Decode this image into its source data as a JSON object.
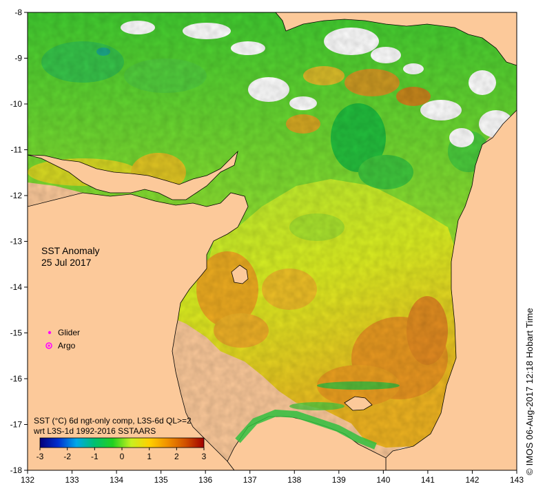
{
  "title": {
    "line1": "SST Anomaly",
    "line2": "25 Jul 2017"
  },
  "legend": {
    "glider": "Glider",
    "argo": "Argo",
    "glider_color": "#ff00ff",
    "argo_color": "#ff00ff"
  },
  "colorbar": {
    "caption_line1": "SST (°C) 6d ngt-only comp, L3S-6d QL>=2",
    "caption_line2": "wrt L3S-1d 1992-2016 SSTAARS",
    "ticks": [
      "-3",
      "-2",
      "-1",
      "0",
      "1",
      "2",
      "3"
    ],
    "min": -3,
    "max": 3,
    "stops": [
      "#05007a",
      "#0030d0",
      "#00a8e8",
      "#00c070",
      "#22d020",
      "#c8f020",
      "#ffd000",
      "#f09000",
      "#d05000",
      "#a00000"
    ]
  },
  "axes": {
    "x_ticks": [
      "132",
      "133",
      "134",
      "135",
      "136",
      "137",
      "138",
      "139",
      "140",
      "141",
      "142",
      "143"
    ],
    "y_ticks": [
      "-8",
      "-9",
      "-10",
      "-11",
      "-12",
      "-13",
      "-14",
      "-15",
      "-16",
      "-17",
      "-18"
    ],
    "lon_range": [
      132,
      143
    ],
    "lat_range": [
      -18,
      -8
    ]
  },
  "credit": "© IMOS 06-Aug-2017 12:18 Hobart Time",
  "colors": {
    "land": "#fcc99a",
    "no_data": "#ffffff",
    "coast": "#000000"
  }
}
